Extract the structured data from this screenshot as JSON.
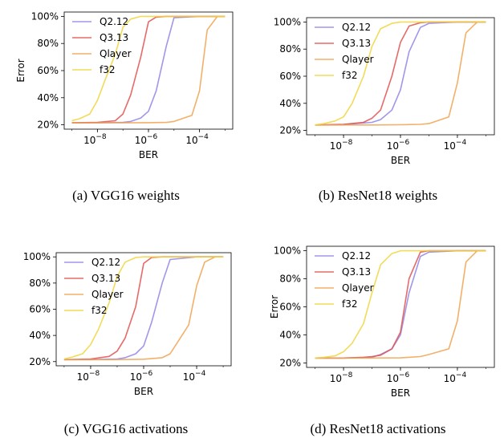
{
  "captions": [
    "(a)  VGG16 weights",
    "(b)  ResNet18 weights",
    "(c)  VGG16 activations",
    "(d)  ResNet18 activations"
  ],
  "colors": {
    "Q2.12": "#8f85e6",
    "Q3.13": "#e0514f",
    "Qlayer": "#f0a24f",
    "f32": "#f0d53c"
  },
  "chart_data": [
    {
      "type": "line",
      "xlabel": "BER",
      "ylabel": "Error",
      "xscale": "log",
      "xlim": [
        1e-09,
        0.001
      ],
      "ylim": [
        20,
        100
      ],
      "xticks": [
        {
          "v": 1e-08,
          "base": "10",
          "exp": "−8"
        },
        {
          "v": 1e-06,
          "base": "10",
          "exp": "−6"
        },
        {
          "v": 0.0001,
          "base": "10",
          "exp": "−4"
        }
      ],
      "yticks": [
        {
          "v": 20,
          "label": "20%"
        },
        {
          "v": 40,
          "label": "40%"
        },
        {
          "v": 60,
          "label": "60%"
        },
        {
          "v": 80,
          "label": "80%"
        },
        {
          "v": 100,
          "label": "100%"
        }
      ],
      "legend": "top-left",
      "series": [
        {
          "name": "Q2.12",
          "x": [
            1e-09,
            1e-08,
            1e-07,
            2e-07,
            5e-07,
            1e-06,
            2e-06,
            5e-06,
            1e-05,
            0.0001,
            0.001
          ],
          "y": [
            21.5,
            21.5,
            21.8,
            22.5,
            25,
            30,
            45,
            78,
            99,
            100,
            100
          ]
        },
        {
          "name": "Q3.13",
          "x": [
            1e-09,
            1e-08,
            5e-08,
            1e-07,
            2e-07,
            5e-07,
            1e-06,
            2e-06,
            5e-06,
            1e-05,
            0.001
          ],
          "y": [
            21.5,
            21.8,
            23,
            28,
            42,
            70,
            96,
            99.5,
            100,
            100,
            100
          ]
        },
        {
          "name": "Qlayer",
          "x": [
            1e-09,
            1e-07,
            1e-06,
            5e-06,
            1e-05,
            5e-05,
            0.0001,
            0.0002,
            0.0005,
            0.001
          ],
          "y": [
            21.5,
            21.5,
            21.6,
            21.8,
            22.5,
            27,
            45,
            90,
            100,
            100
          ]
        },
        {
          "name": "f32",
          "x": [
            1e-09,
            2e-09,
            5e-09,
            1e-08,
            2e-08,
            5e-08,
            1e-07,
            2e-07,
            5e-07,
            1e-06,
            1e-05,
            0.001
          ],
          "y": [
            23,
            24.5,
            28,
            38,
            53,
            72,
            92,
            98,
            100,
            100,
            100,
            100
          ]
        }
      ]
    },
    {
      "type": "line",
      "xlabel": "BER",
      "ylabel": "",
      "xscale": "log",
      "xlim": [
        1e-09,
        0.001
      ],
      "ylim": [
        20,
        100
      ],
      "xticks": [
        {
          "v": 1e-08,
          "base": "10",
          "exp": "−8"
        },
        {
          "v": 1e-06,
          "base": "10",
          "exp": "−6"
        },
        {
          "v": 0.0001,
          "base": "10",
          "exp": "−4"
        }
      ],
      "yticks": [
        {
          "v": 20,
          "label": "20%"
        },
        {
          "v": 40,
          "label": "40%"
        },
        {
          "v": 60,
          "label": "60%"
        },
        {
          "v": 80,
          "label": "80%"
        },
        {
          "v": 100,
          "label": "100%"
        }
      ],
      "legend": "top-left",
      "series": [
        {
          "name": "Q2.12",
          "x": [
            1e-09,
            1e-08,
            1e-07,
            2e-07,
            5e-07,
            1e-06,
            2e-06,
            5e-06,
            1e-05,
            0.0001,
            0.001
          ],
          "y": [
            24,
            24.3,
            26,
            28,
            35,
            50,
            78,
            96,
            99,
            100,
            100
          ]
        },
        {
          "name": "Q3.13",
          "x": [
            1e-09,
            1e-08,
            5e-08,
            1e-07,
            2e-07,
            5e-07,
            1e-06,
            2e-06,
            5e-06,
            1e-05,
            0.001
          ],
          "y": [
            24,
            24.5,
            26,
            29,
            35,
            60,
            85,
            97,
            99.5,
            100,
            100
          ]
        },
        {
          "name": "Qlayer",
          "x": [
            1e-09,
            1e-07,
            1e-06,
            5e-06,
            1e-05,
            5e-05,
            0.0001,
            0.0002,
            0.0005,
            0.001
          ],
          "y": [
            24,
            24,
            24.2,
            24.5,
            25,
            30,
            55,
            92,
            100,
            100
          ]
        },
        {
          "name": "f32",
          "x": [
            1e-09,
            2e-09,
            5e-09,
            1e-08,
            2e-08,
            5e-08,
            1e-07,
            2e-07,
            5e-07,
            1e-06,
            1e-05,
            0.001
          ],
          "y": [
            24,
            25,
            27,
            30,
            40,
            60,
            82,
            95,
            99,
            100,
            100,
            100
          ]
        }
      ]
    },
    {
      "type": "line",
      "xlabel": "BER",
      "ylabel": "",
      "xscale": "log",
      "xlim": [
        1e-09,
        0.001
      ],
      "ylim": [
        20,
        100
      ],
      "xticks": [
        {
          "v": 1e-08,
          "base": "10",
          "exp": "−8"
        },
        {
          "v": 1e-06,
          "base": "10",
          "exp": "−6"
        },
        {
          "v": 0.0001,
          "base": "10",
          "exp": "−4"
        }
      ],
      "yticks": [
        {
          "v": 20,
          "label": "20%"
        },
        {
          "v": 40,
          "label": "40%"
        },
        {
          "v": 60,
          "label": "60%"
        },
        {
          "v": 80,
          "label": "80%"
        },
        {
          "v": 100,
          "label": "100%"
        }
      ],
      "legend": "top-left",
      "series": [
        {
          "name": "Q2.12",
          "x": [
            1e-09,
            1e-08,
            1e-07,
            2e-07,
            5e-07,
            1e-06,
            2e-06,
            5e-06,
            1e-05,
            0.0001,
            0.001
          ],
          "y": [
            21.5,
            21.5,
            22,
            23,
            26,
            32,
            50,
            80,
            98,
            100,
            100
          ]
        },
        {
          "name": "Q3.13",
          "x": [
            1e-09,
            1e-08,
            5e-08,
            1e-07,
            2e-07,
            5e-07,
            1e-06,
            2e-06,
            5e-06,
            1e-05,
            0.001
          ],
          "y": [
            21.5,
            22,
            24,
            28,
            38,
            62,
            95,
            99.5,
            100,
            100,
            100
          ]
        },
        {
          "name": "Qlayer",
          "x": [
            1e-09,
            1e-07,
            1e-06,
            5e-06,
            1e-05,
            5e-05,
            0.0001,
            0.0002,
            0.0005,
            0.001
          ],
          "y": [
            21.5,
            21.5,
            21.8,
            23,
            26,
            48,
            78,
            96,
            100,
            100
          ]
        },
        {
          "name": "f32",
          "x": [
            1e-09,
            2e-09,
            5e-09,
            1e-08,
            2e-08,
            5e-08,
            1e-07,
            2e-07,
            5e-07,
            1e-06,
            1e-05,
            0.001
          ],
          "y": [
            22,
            23.5,
            26,
            33,
            45,
            65,
            85,
            96,
            99.5,
            100,
            100,
            100
          ]
        }
      ]
    },
    {
      "type": "line",
      "xlabel": "BER",
      "ylabel": "Error",
      "xscale": "log",
      "xlim": [
        1e-09,
        0.001
      ],
      "ylim": [
        20,
        100
      ],
      "xticks": [
        {
          "v": 1e-08,
          "base": "10",
          "exp": "−8"
        },
        {
          "v": 1e-06,
          "base": "10",
          "exp": "−6"
        },
        {
          "v": 0.0001,
          "base": "10",
          "exp": "−4"
        }
      ],
      "yticks": [
        {
          "v": 20,
          "label": "20%"
        },
        {
          "v": 40,
          "label": "40%"
        },
        {
          "v": 60,
          "label": "60%"
        },
        {
          "v": 80,
          "label": "80%"
        },
        {
          "v": 100,
          "label": "100%"
        }
      ],
      "legend": "top-left",
      "series": [
        {
          "name": "Q2.12",
          "x": [
            1e-09,
            1e-08,
            1e-07,
            2e-07,
            5e-07,
            1e-06,
            2e-06,
            5e-06,
            1e-05,
            0.0001,
            0.001
          ],
          "y": [
            23.5,
            23.5,
            24,
            26,
            30,
            40,
            70,
            96,
            99,
            100,
            100
          ]
        },
        {
          "name": "Q3.13",
          "x": [
            1e-09,
            1e-08,
            5e-08,
            1e-07,
            2e-07,
            5e-07,
            1e-06,
            2e-06,
            5e-06,
            1e-05,
            0.001
          ],
          "y": [
            23.5,
            23.5,
            24,
            24.5,
            25.5,
            30,
            42,
            80,
            99,
            100,
            100
          ]
        },
        {
          "name": "Qlayer",
          "x": [
            1e-09,
            1e-07,
            1e-06,
            5e-06,
            1e-05,
            5e-05,
            0.0001,
            0.0002,
            0.0005,
            0.001
          ],
          "y": [
            23.5,
            23.5,
            23.6,
            24.5,
            26,
            30,
            50,
            92,
            100,
            100
          ]
        },
        {
          "name": "f32",
          "x": [
            1e-09,
            2e-09,
            5e-09,
            1e-08,
            2e-08,
            5e-08,
            1e-07,
            2e-07,
            5e-07,
            1e-06,
            1e-05,
            0.001
          ],
          "y": [
            23.5,
            24,
            25,
            28,
            34,
            48,
            70,
            90,
            98,
            100,
            100,
            100
          ]
        }
      ]
    }
  ]
}
